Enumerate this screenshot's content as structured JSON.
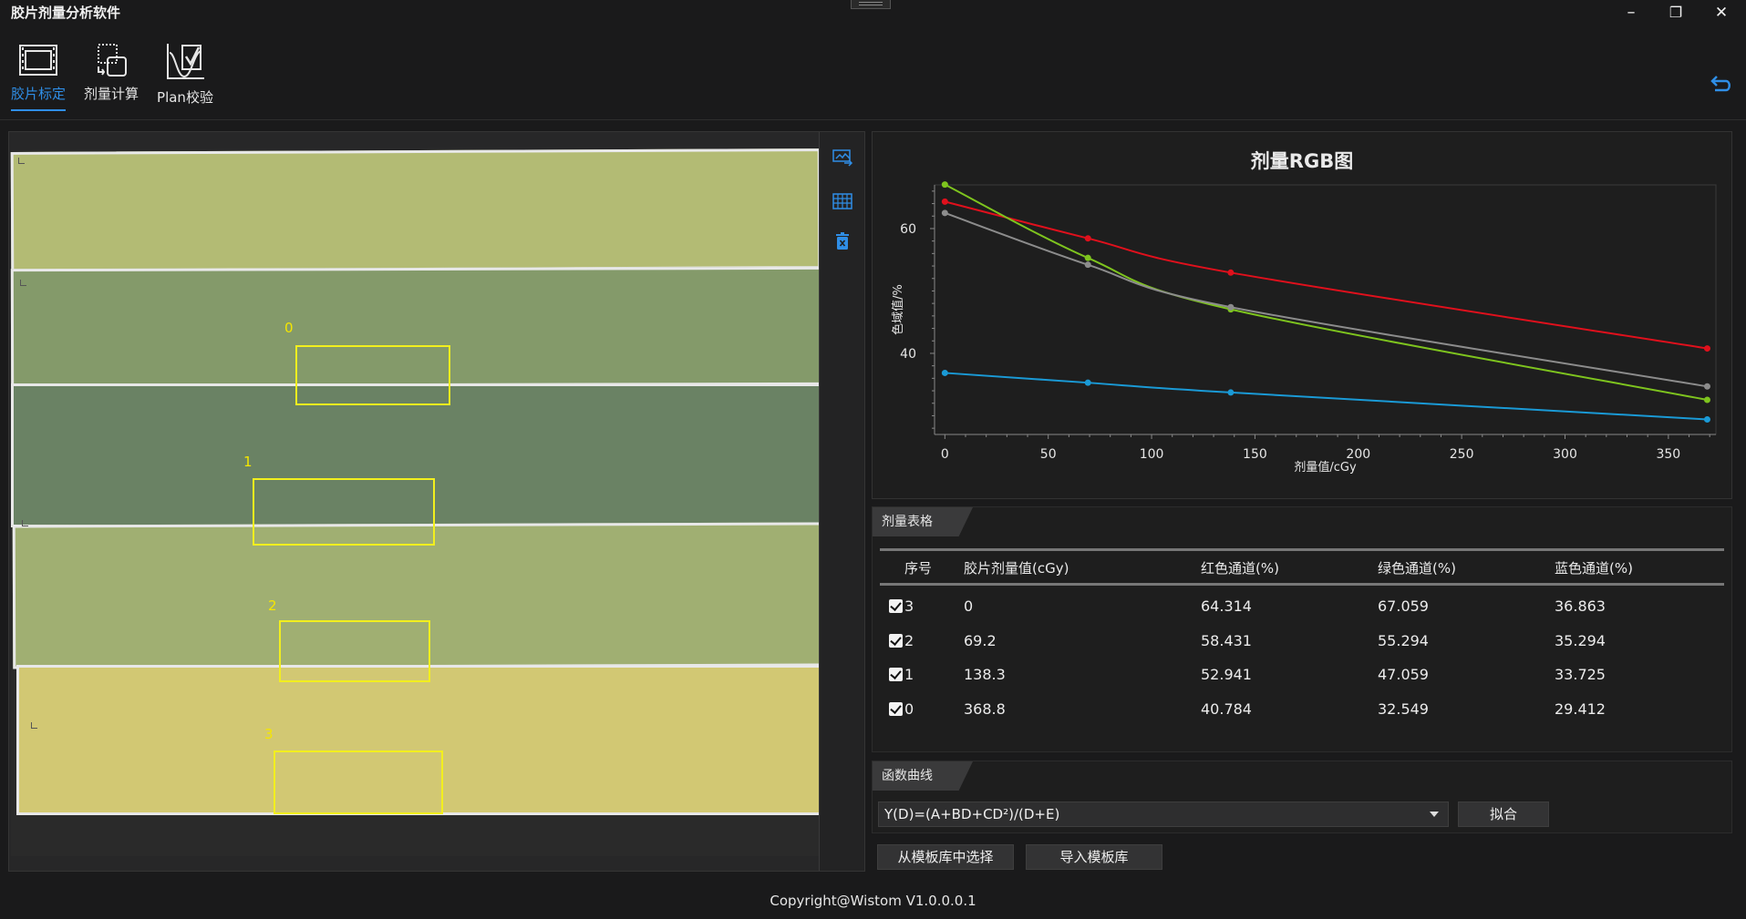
{
  "app": {
    "title": "胶片剂量分析软件",
    "footer": "Copyright@Wistom V1.0.0.0.1"
  },
  "window_controls": {
    "minimize": "–",
    "maximize": "❐",
    "close": "✕"
  },
  "toolbar": {
    "tools": [
      {
        "label": "胶片标定",
        "icon": "film-icon",
        "active": true
      },
      {
        "label": "剂量计算",
        "icon": "dose-calc-icon",
        "active": false
      },
      {
        "label": "Plan校验",
        "icon": "plan-check-icon",
        "active": false
      }
    ],
    "undo_icon": "undo-icon",
    "accent_color": "#2f8ee6"
  },
  "film": {
    "strip_numbers": [
      "0",
      "1",
      "2",
      "3"
    ],
    "colors": [
      "#b3bb74",
      "#849a6a",
      "#6a8264",
      "#a0af72",
      "#d2c873"
    ],
    "side_tools": [
      "image-import-icon",
      "grid-icon",
      "delete-icon"
    ]
  },
  "chart_data": {
    "type": "line",
    "title": "剂量RGB图",
    "xlabel": "剂量值/cGy",
    "ylabel": "色域值/%",
    "xlim": [
      -5,
      373
    ],
    "ylim": [
      27,
      67
    ],
    "xticks": [
      0,
      50,
      100,
      150,
      200,
      250,
      300,
      350
    ],
    "yticks": [
      40,
      60
    ],
    "x": [
      0,
      69.2,
      138.3,
      368.8
    ],
    "series": [
      {
        "color": "#e0101c",
        "values": [
          64.314,
          58.431,
          52.941,
          40.784
        ]
      },
      {
        "color": "#7ec41e",
        "values": [
          67.059,
          55.294,
          47.059,
          32.549
        ]
      },
      {
        "color": "#1a9ad6",
        "values": [
          36.863,
          35.294,
          33.725,
          29.412
        ]
      },
      {
        "color": "#8c8c8c",
        "values": [
          62.5,
          54.2,
          47.4,
          34.7
        ]
      }
    ]
  },
  "table": {
    "tab_label": "剂量表格",
    "headers": [
      "序号",
      "胶片剂量值(cGy)",
      "红色通道(%)",
      "绿色通道(%)",
      "蓝色通道(%)"
    ],
    "rows": [
      {
        "index": "3",
        "dose": "0",
        "red": "64.314",
        "green": "67.059",
        "blue": "36.863",
        "checked": true
      },
      {
        "index": "2",
        "dose": "69.2",
        "red": "58.431",
        "green": "55.294",
        "blue": "35.294",
        "checked": true
      },
      {
        "index": "1",
        "dose": "138.3",
        "red": "52.941",
        "green": "47.059",
        "blue": "33.725",
        "checked": true
      },
      {
        "index": "0",
        "dose": "368.8",
        "red": "40.784",
        "green": "32.549",
        "blue": "29.412",
        "checked": true
      }
    ]
  },
  "function": {
    "tab_label": "函数曲线",
    "formula": "Y(D)=(A+BD+CD²)/(D+E)",
    "fit_button": "拟合",
    "select_template_button": "从模板库中选择",
    "import_template_button": "导入模板库"
  }
}
